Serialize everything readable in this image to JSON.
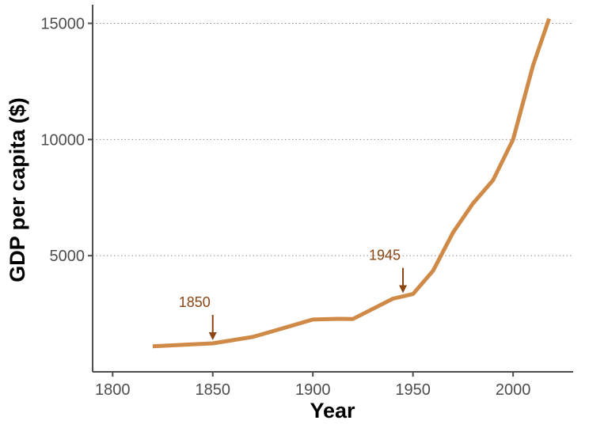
{
  "chart_data": {
    "type": "line",
    "title": "",
    "xlabel": "Year",
    "ylabel": "GDP per capita ($)",
    "xlim": [
      1790,
      2030
    ],
    "ylim": [
      0,
      15800
    ],
    "x_ticks": [
      1800,
      1850,
      1900,
      1950,
      2000
    ],
    "y_ticks": [
      5000,
      10000,
      15000
    ],
    "grid": "horizontal dotted at y ticks",
    "series": [
      {
        "color": "#d08a47",
        "points": [
          {
            "x": 1820,
            "y": 1100
          },
          {
            "x": 1850,
            "y": 1225
          },
          {
            "x": 1870,
            "y": 1500
          },
          {
            "x": 1880,
            "y": 1750
          },
          {
            "x": 1900,
            "y": 2250
          },
          {
            "x": 1913,
            "y": 2280
          },
          {
            "x": 1920,
            "y": 2275
          },
          {
            "x": 1940,
            "y": 3150
          },
          {
            "x": 1950,
            "y": 3350
          },
          {
            "x": 1960,
            "y": 4350
          },
          {
            "x": 1970,
            "y": 6000
          },
          {
            "x": 1980,
            "y": 7250
          },
          {
            "x": 1990,
            "y": 8250
          },
          {
            "x": 2000,
            "y": 10000
          },
          {
            "x": 2010,
            "y": 13200
          },
          {
            "x": 2018,
            "y": 15200
          }
        ]
      }
    ],
    "annotations": [
      {
        "label": "1850",
        "x": 1850,
        "y": 1225,
        "color": "#8b4513"
      },
      {
        "label": "1945",
        "x": 1945,
        "y": 3250,
        "color": "#8b4513"
      }
    ]
  }
}
